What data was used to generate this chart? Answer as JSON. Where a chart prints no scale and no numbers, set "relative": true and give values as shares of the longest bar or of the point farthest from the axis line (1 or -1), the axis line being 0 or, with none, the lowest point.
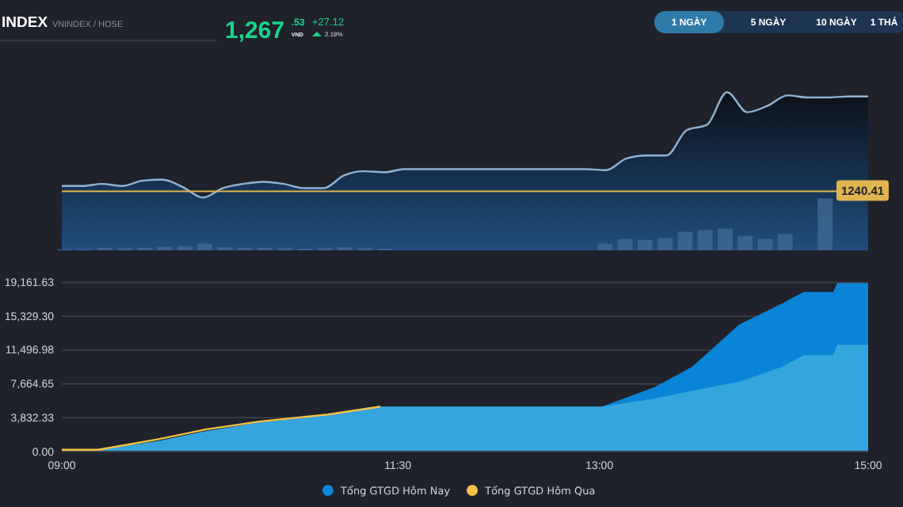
{
  "chart_data": [
    {
      "type": "area",
      "title": "INDEX",
      "subtitle": "VNINDEX / HOSE",
      "relative": true,
      "color": "#8fb3d3",
      "annotations": [
        "1,267",
        ".53",
        "VND",
        "+27.12",
        "2.19%",
        "1 NGÀY",
        "5 NGÀY",
        "10 NGÀY",
        "1 THÁ",
        {
          "text": "1240.41",
          "y": 0.06
        }
      ],
      "categories": [
        null,
        null,
        null,
        null,
        null,
        null,
        null,
        null,
        null,
        null,
        null,
        null,
        null,
        null,
        null,
        null,
        null,
        null,
        null,
        null,
        null,
        null,
        null,
        null,
        null,
        null,
        null,
        null,
        null,
        null,
        null,
        null,
        null,
        null,
        null,
        null,
        null,
        null,
        null,
        null,
        null
      ],
      "values": [
        0.11,
        0.11,
        0.13,
        0.11,
        0.16,
        0.17,
        0.1,
        0,
        0.09,
        0.13,
        0.15,
        0.13,
        0.09,
        0.09,
        0.21,
        0.25,
        0.24,
        0.27,
        0.27,
        0.27,
        0.27,
        0.27,
        0.27,
        0.27,
        0.27,
        0.27,
        0.27,
        0.26,
        0.37,
        0.4,
        0.4,
        0.64,
        0.69,
        1,
        0.81,
        0.87,
        0.97,
        0.95,
        0.95,
        0.96,
        0.96
      ],
      "ref_lines": [
        {
          "axis": "y",
          "value": 0.06,
          "color": "#e0b450"
        }
      ]
    },
    {
      "type": "bar",
      "relative": true,
      "color": "#3f6895",
      "categories": [
        null,
        null,
        null,
        null,
        null,
        null,
        null,
        null,
        null,
        null,
        null,
        null,
        null,
        null,
        null,
        null,
        null,
        null,
        null,
        null,
        null,
        null,
        null,
        null,
        null,
        null,
        null,
        null,
        null,
        null,
        null,
        null,
        null,
        null,
        null,
        null,
        null,
        null,
        null,
        null,
        null
      ],
      "values": [
        0.02,
        0.02,
        0.05,
        0.04,
        0.05,
        0.07,
        0.08,
        0.13,
        0.06,
        0.05,
        0.05,
        0.04,
        0.03,
        0.04,
        0.06,
        0.04,
        0.03,
        0,
        0,
        0,
        0,
        0,
        0,
        0,
        0,
        0,
        0,
        0.13,
        0.22,
        0.2,
        0.24,
        0.36,
        0.39,
        0.42,
        0.28,
        0.22,
        0.31,
        0,
        1,
        0,
        0
      ]
    },
    {
      "type": "area",
      "grid": "y",
      "legend": "bottom",
      "x": [
        9,
        9.27,
        9.72,
        10.07,
        10.47,
        10.98,
        11.37,
        13.02,
        13.41,
        13.69,
        14.04,
        14.36,
        14.52,
        14.74,
        14.77,
        15
      ],
      "xlim": [
        9,
        15
      ],
      "xticks": [
        {
          "value": 9,
          "label": "09:00"
        },
        {
          "value": 11.5,
          "label": "11:30"
        },
        {
          "value": 13,
          "label": "13:00"
        },
        {
          "value": 15,
          "label": "15:00"
        }
      ],
      "ylim": [
        0,
        19161.63
      ],
      "yticks": [
        {
          "value": 0,
          "label": "0.00"
        },
        {
          "value": 3832.33,
          "label": "3,832.33"
        },
        {
          "value": 7664.65,
          "label": "7,664.65"
        },
        {
          "value": 11496.98,
          "label": "11,496.98"
        },
        {
          "value": 15329.3,
          "label": "15,329.30"
        },
        {
          "value": 19161.63,
          "label": "19,161.63"
        }
      ],
      "series": [
        {
          "name": "Tổng GTGD Hôm Nay",
          "color": "#0a84d6",
          "values": [
            200,
            200,
            1200,
            2300,
            3300,
            4100,
            5100,
            5100,
            7300,
            9600,
            14400,
            16800,
            18100,
            18100,
            19100,
            19100
          ]
        },
        {
          "color": "#35a5de",
          "values": [
            200,
            200,
            1200,
            2300,
            3300,
            4100,
            5100,
            5100,
            6000,
            6900,
            7900,
            9600,
            10900,
            10900,
            12100,
            12100
          ]
        },
        {
          "name": "Tổng GTGD Hôm Qua",
          "type": "line",
          "color": "#f6c244",
          "values": [
            200,
            200,
            1400,
            2500,
            3400,
            4200,
            5100,
            null,
            null,
            null,
            null,
            null,
            null,
            null,
            null,
            null
          ]
        }
      ]
    }
  ]
}
